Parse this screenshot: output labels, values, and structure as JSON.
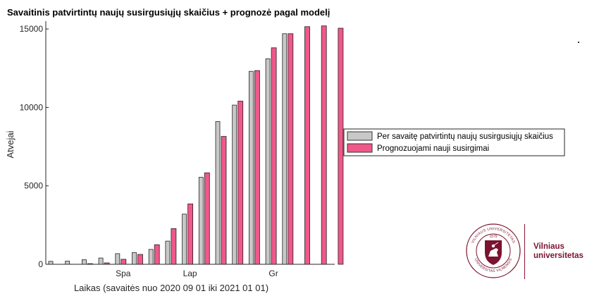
{
  "chart_data": {
    "type": "bar",
    "title": "Savaitinis patvirtintų naujų susirgusiųjų skaičius + prognozė pagal modelį",
    "xlabel": "Laikas (savaitės nuo 2020 09 01 iki 2021 01 01)",
    "ylabel": "Atvejai",
    "ylim": [
      0,
      15500
    ],
    "yticks": [
      0,
      5000,
      10000,
      15000
    ],
    "x_tick_labels": [
      {
        "label": "Spa",
        "week": 5
      },
      {
        "label": "Lap",
        "week": 9
      },
      {
        "label": "Gr",
        "week": 14
      }
    ],
    "weeks": [
      1,
      2,
      3,
      4,
      5,
      6,
      7,
      8,
      9,
      10,
      11,
      12,
      13,
      14,
      15,
      16,
      17,
      18
    ],
    "series": [
      {
        "name": "Per savaitę patvirtintų naujų susirgusiųjų skaičius",
        "color": "#c8c8c8",
        "values": [
          190,
          200,
          290,
          400,
          680,
          750,
          950,
          1480,
          3200,
          5550,
          9100,
          10150,
          12300,
          13100,
          14700,
          null,
          null,
          null
        ]
      },
      {
        "name": "Prognozuojami nauji susirgimai",
        "color": "#f0588a",
        "values": [
          null,
          null,
          40,
          90,
          320,
          630,
          1250,
          2280,
          3850,
          5830,
          8150,
          10400,
          12350,
          13800,
          14700,
          15150,
          15200,
          15050
        ]
      }
    ],
    "legend_position": "right"
  },
  "logo": {
    "name_line1": "Vilniaus",
    "name_line2": "universitetas",
    "seal_text_top": "VILNIAUS UNIVERSITETAS",
    "seal_text_bottom": "UNIVERSITAS VILNENSIS",
    "seal_year": "1579",
    "brand_color": "#7b1230"
  }
}
